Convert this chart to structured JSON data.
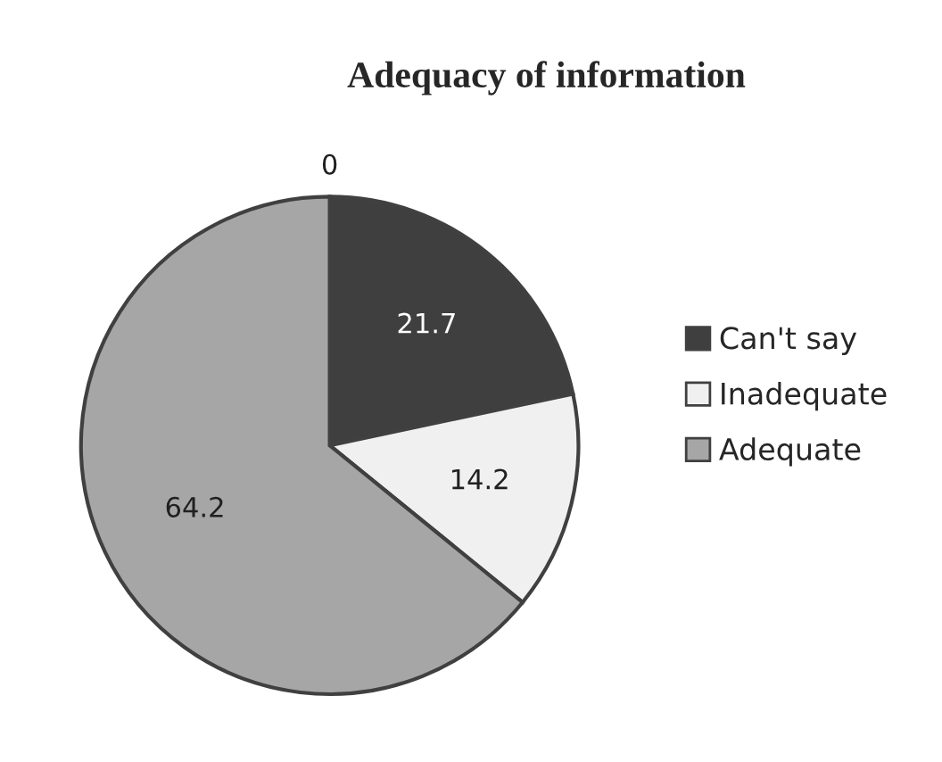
{
  "chart_data": {
    "type": "pie",
    "title": "Adequacy of information",
    "categories": [
      null,
      "Can't say",
      "Inadequate",
      "Adequate"
    ],
    "values": [
      0,
      21.7,
      14.2,
      64.2
    ],
    "colors": [
      "#7f7f7f",
      "#3f3f3f",
      "#f0f0f0",
      "#a6a6a6"
    ],
    "value_labels": [
      "0",
      "21.7",
      "14.2",
      "64.2"
    ],
    "legend": "right"
  }
}
